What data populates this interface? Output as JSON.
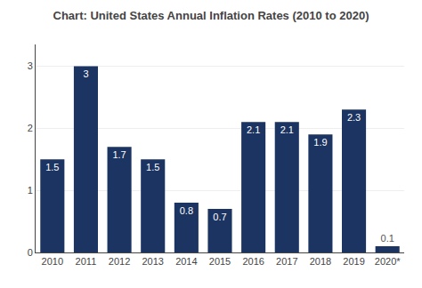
{
  "chart_data": {
    "type": "bar",
    "title": "Chart: United States Annual Inflation Rates (2010 to 2020)",
    "categories": [
      "2010",
      "2011",
      "2012",
      "2013",
      "2014",
      "2015",
      "2016",
      "2017",
      "2018",
      "2019",
      "2020*"
    ],
    "values": [
      1.5,
      3.0,
      1.7,
      1.5,
      0.8,
      0.7,
      2.1,
      2.1,
      1.9,
      2.3,
      0.1
    ],
    "color": "#1c3461",
    "ylim": [
      0,
      3.35
    ],
    "yticks": [
      0,
      1,
      2,
      3
    ],
    "grid": true,
    "data_labels": true
  }
}
